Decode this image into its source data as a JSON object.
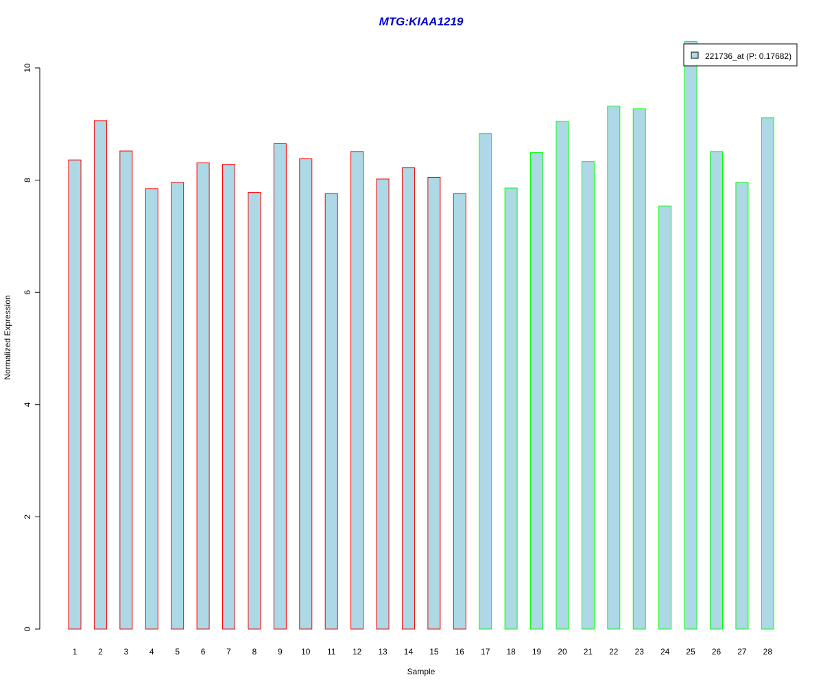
{
  "colors": {
    "bar_fill": "#add8e6",
    "group1_border": "#ff0000",
    "group2_border": "#00ff00",
    "title": "#0000cd",
    "axis": "#000000"
  },
  "chart_data": {
    "type": "bar",
    "title": "MTG:KIAA1219",
    "xlabel": "Sample",
    "ylabel": "Normalized Expression",
    "ylim": [
      0,
      10.5
    ],
    "yticks": [
      "0",
      "2",
      "4",
      "6",
      "8",
      "10"
    ],
    "grid": false,
    "legend_position": "top-right",
    "categories": [
      "1",
      "2",
      "3",
      "4",
      "5",
      "6",
      "7",
      "8",
      "9",
      "10",
      "11",
      "12",
      "13",
      "14",
      "15",
      "16",
      "17",
      "18",
      "19",
      "20",
      "21",
      "22",
      "23",
      "24",
      "25",
      "26",
      "27",
      "28"
    ],
    "series": [
      {
        "name": "221736_at (P: 0.17682)",
        "values": [
          8.36,
          9.06,
          8.52,
          7.85,
          7.96,
          8.31,
          8.28,
          7.78,
          8.65,
          8.38,
          7.76,
          8.51,
          8.02,
          8.22,
          8.05,
          7.76,
          8.83,
          7.86,
          8.49,
          9.05,
          8.33,
          9.32,
          9.27,
          7.54,
          10.47,
          8.51,
          7.96,
          9.11
        ],
        "border_groups": [
          "group1",
          "group1",
          "group1",
          "group1",
          "group1",
          "group1",
          "group1",
          "group1",
          "group1",
          "group1",
          "group1",
          "group1",
          "group1",
          "group1",
          "group1",
          "group1",
          "group2",
          "group2",
          "group2",
          "group2",
          "group2",
          "group2",
          "group2",
          "group2",
          "group2",
          "group2",
          "group2",
          "group2"
        ]
      }
    ]
  }
}
